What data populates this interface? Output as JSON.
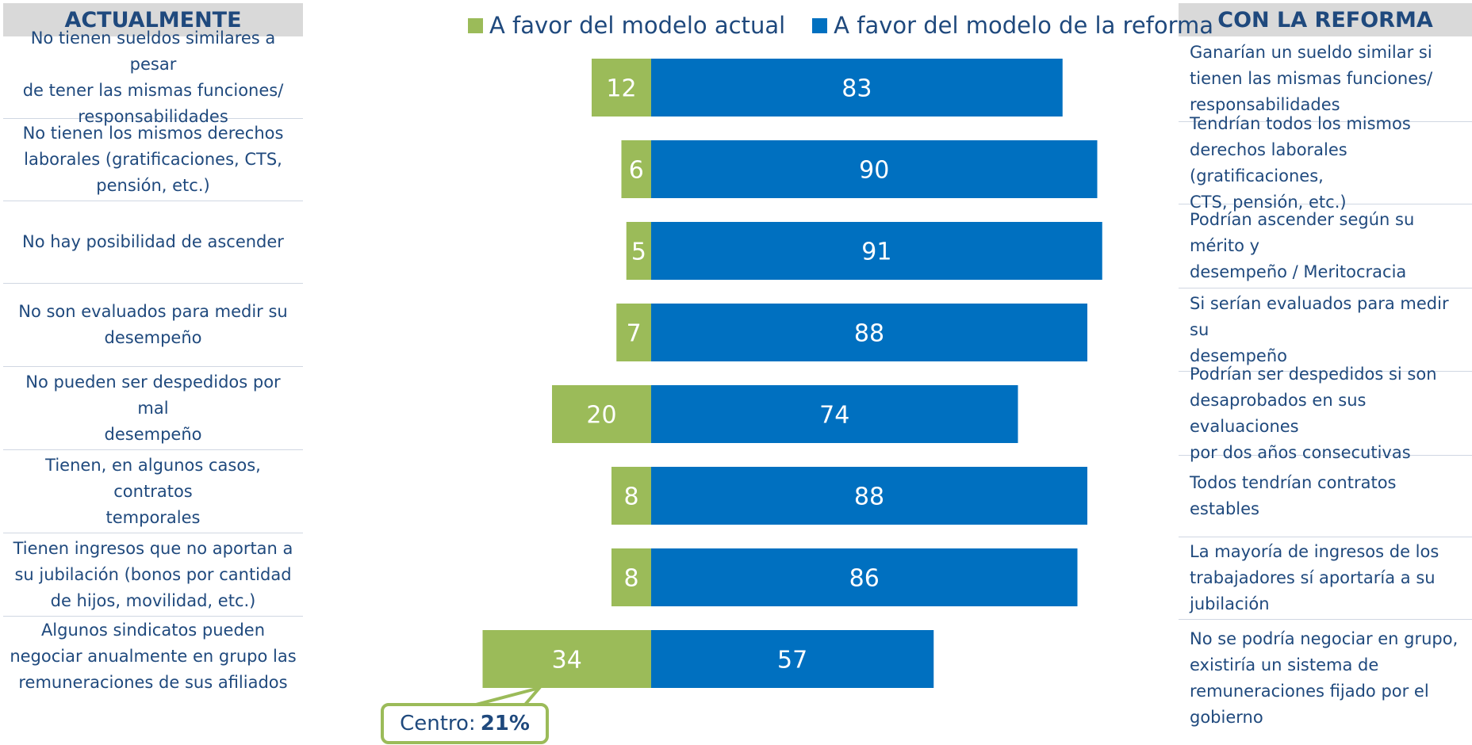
{
  "left_header": "ACTUALMENTE",
  "right_header": "CON LA REFORMA",
  "left_rows": [
    [
      "No tienen sueldos similares a pesar",
      "de tener  las mismas funciones/",
      "responsabilidades"
    ],
    [
      "No tienen los mismos derechos",
      "laborales (gratificaciones, CTS,",
      "pensión, etc.)"
    ],
    [
      "No hay posibilidad de ascender"
    ],
    [
      "No son evaluados para medir su",
      "desempeño"
    ],
    [
      "No pueden ser despedidos por mal",
      "desempeño"
    ],
    [
      "Tienen, en algunos casos, contratos",
      "temporales"
    ],
    [
      "Tienen ingresos que no aportan a",
      "su jubilación (bonos por cantidad",
      "de hijos, movilidad, etc.)"
    ],
    [
      "Algunos sindicatos  pueden",
      "negociar anualmente en grupo las",
      "remuneraciones de sus afiliados"
    ]
  ],
  "right_rows": [
    [
      "Ganarían un sueldo  similar si",
      "tienen las mismas  funciones/",
      "responsabilidades"
    ],
    [
      "Tendrían todos los mismos",
      "derechos laborales (gratificaciones,",
      "CTS, pensión, etc.)"
    ],
    [
      "Podrían ascender según su mérito y",
      "desempeño / Meritocracia"
    ],
    [
      "Si serían evaluados para medir su",
      "desempeño"
    ],
    [
      "Podrían ser despedidos si son",
      "desaprobados en sus evaluaciones",
      "por dos años consecutivas"
    ],
    [
      "Todos tendrían contratos estables"
    ],
    [
      "La mayoría de ingresos de los",
      "trabajadores sí aportaría a su",
      "jubilación"
    ],
    [
      "No se podría negociar en grupo,",
      "existiría un sistema de",
      "remuneraciones fijado por el",
      "gobierno"
    ]
  ],
  "callout": {
    "label": "Centro:",
    "value": "21%"
  },
  "chart_data": {
    "type": "bar",
    "orientation": "horizontal-diverging",
    "series": [
      {
        "name": "A favor del modelo actual",
        "color": "#9bbb59",
        "values": [
          12,
          6,
          5,
          7,
          20,
          8,
          8,
          34
        ]
      },
      {
        "name": "A favor del modelo de la reforma",
        "color": "#0070c0",
        "values": [
          83,
          90,
          91,
          88,
          74,
          88,
          86,
          57
        ]
      }
    ],
    "legend_position": "top",
    "grid": false,
    "data_labels": true
  }
}
